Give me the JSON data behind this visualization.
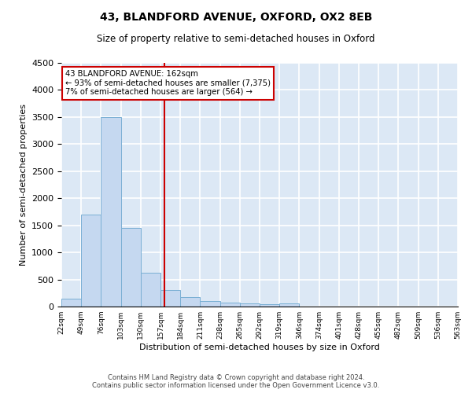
{
  "title1": "43, BLANDFORD AVENUE, OXFORD, OX2 8EB",
  "title2": "Size of property relative to semi-detached houses in Oxford",
  "xlabel": "Distribution of semi-detached houses by size in Oxford",
  "ylabel": "Number of semi-detached properties",
  "bar_values": [
    150,
    1700,
    3500,
    1450,
    625,
    300,
    175,
    100,
    75,
    60,
    50,
    60,
    0,
    0,
    0,
    0,
    0,
    0,
    0,
    0
  ],
  "bin_labels": [
    "22sqm",
    "49sqm",
    "76sqm",
    "103sqm",
    "130sqm",
    "157sqm",
    "184sqm",
    "211sqm",
    "238sqm",
    "265sqm",
    "292sqm",
    "319sqm",
    "346sqm",
    "374sqm",
    "401sqm",
    "428sqm",
    "455sqm",
    "482sqm",
    "509sqm",
    "536sqm",
    "563sqm"
  ],
  "bar_color": "#c5d8f0",
  "bar_edge_color": "#7aafd4",
  "bg_color": "#dce8f5",
  "grid_color": "#ffffff",
  "vline_color": "#cc0000",
  "annotation_title": "43 BLANDFORD AVENUE: 162sqm",
  "annotation_line1": "← 93% of semi-detached houses are smaller (7,375)",
  "annotation_line2": "7% of semi-detached houses are larger (564) →",
  "annotation_box_color": "#ffffff",
  "annotation_edge_color": "#cc0000",
  "ylim": [
    0,
    4500
  ],
  "footnote1": "Contains HM Land Registry data © Crown copyright and database right 2024.",
  "footnote2": "Contains public sector information licensed under the Open Government Licence v3.0."
}
